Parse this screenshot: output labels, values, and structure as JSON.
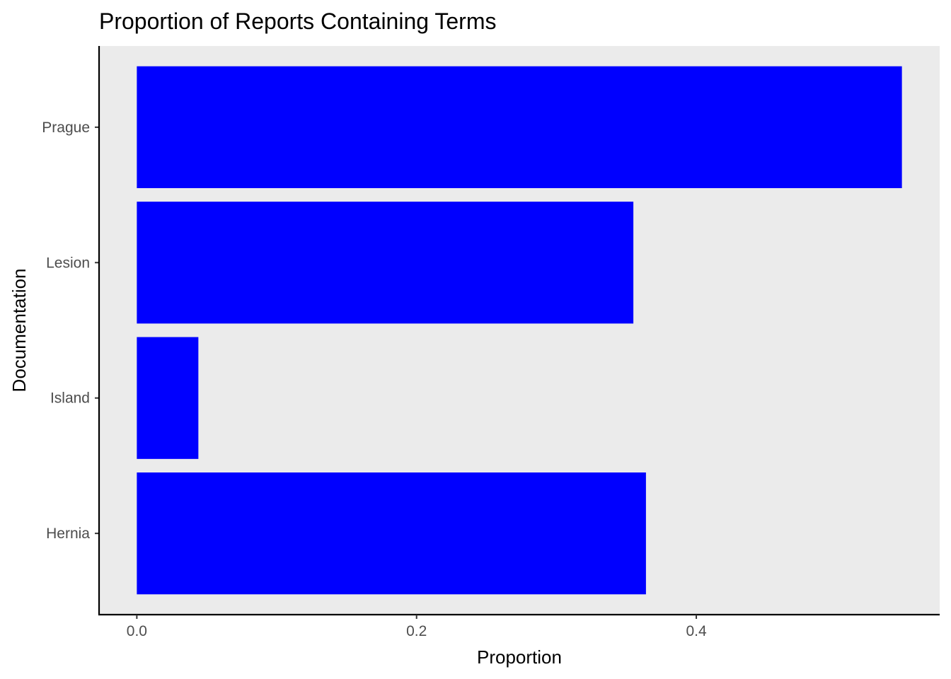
{
  "chart_data": {
    "type": "bar",
    "orientation": "horizontal",
    "title": "Proportion of Reports Containing Terms",
    "xlabel": "Proportion",
    "ylabel": "Documentation",
    "categories": [
      "Hernia",
      "Island",
      "Lesion",
      "Prague"
    ],
    "values": [
      0.364,
      0.044,
      0.355,
      0.547
    ],
    "xlim": [
      -0.027,
      0.574
    ],
    "x_ticks": [
      0.0,
      0.2,
      0.4
    ],
    "x_tick_labels": [
      "0.0",
      "0.2",
      "0.4"
    ],
    "bar_color": "#0000ff",
    "panel_background": "#ebebeb",
    "grid": false,
    "legend": "none"
  }
}
